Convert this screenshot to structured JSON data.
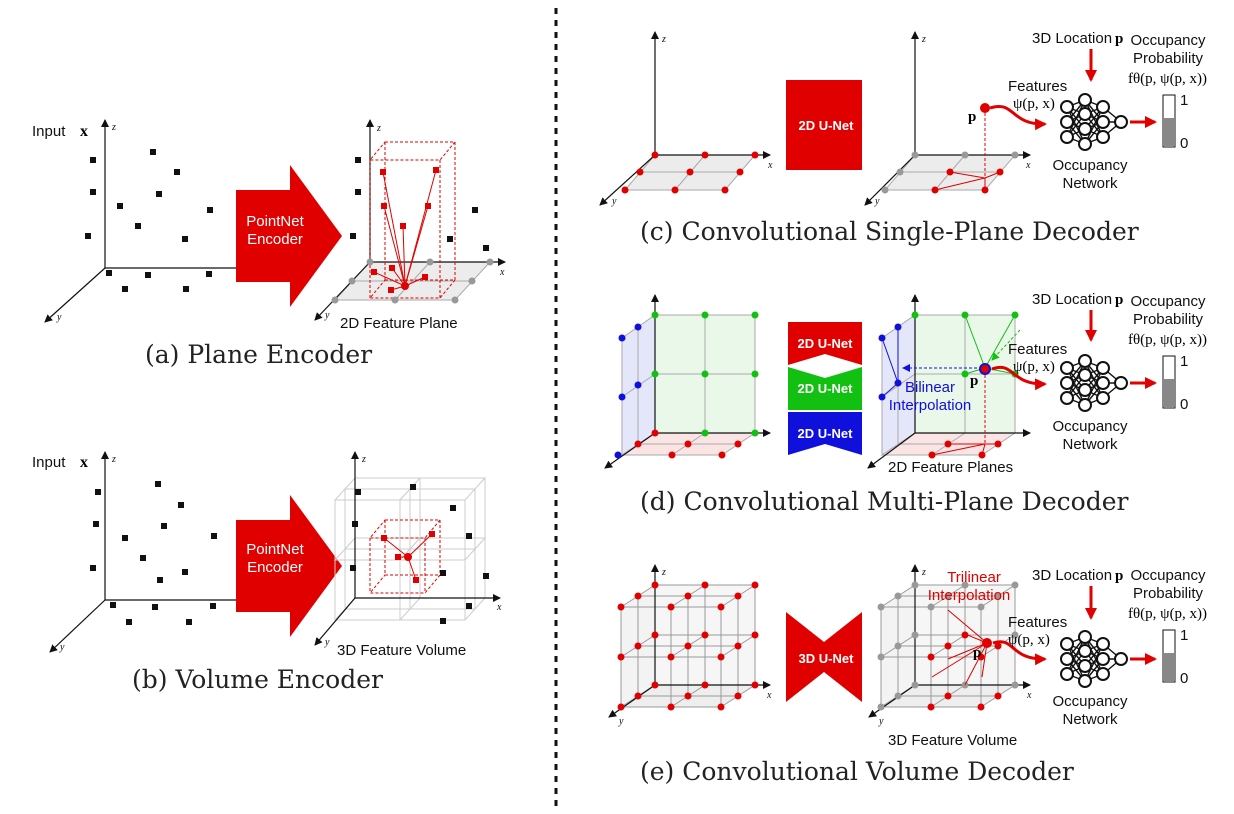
{
  "divider_color": "#111111",
  "colors": {
    "red": "#e00000",
    "green": "#11c011",
    "blue": "#1010dd",
    "gray": "#999999"
  },
  "panel_a": {
    "caption": "(a) Plane Encoder",
    "input_label": "Input",
    "input_symbol": "x",
    "encoder_line1": "PointNet",
    "encoder_line2": "Encoder",
    "feature_label": "2D Feature Plane",
    "axis_x": "x",
    "axis_y": "y",
    "axis_z": "z"
  },
  "panel_b": {
    "caption": "(b) Volume Encoder",
    "input_label": "Input",
    "input_symbol": "x",
    "encoder_line1": "PointNet",
    "encoder_line2": "Encoder",
    "feature_label": "3D Feature Volume",
    "axis_x": "x",
    "axis_y": "y",
    "axis_z": "z"
  },
  "panel_c": {
    "caption": "(c) Convolutional Single-Plane Decoder",
    "unet": "2D U-Net",
    "location_label": "3D Location",
    "location_symbol": "p",
    "point_symbol": "p",
    "features_label": "Features",
    "features_formula": "ψ(p, x)",
    "occ_line1": "Occupancy",
    "occ_line2": "Probability",
    "occ_formula": "fθ(p, ψ(p, x))",
    "bar_max": "1",
    "bar_min": "0",
    "bar_level": 0.55,
    "network_line1": "Occupancy",
    "network_line2": "Network",
    "axis_x": "x",
    "axis_y": "y",
    "axis_z": "z"
  },
  "panel_d": {
    "caption": "(d) Convolutional Multi-Plane Decoder",
    "unets": [
      "2D U-Net",
      "2D U-Net",
      "2D U-Net"
    ],
    "interp_line1": "Bilinear",
    "interp_line2": "Interpolation",
    "feature_label": "2D Feature Planes",
    "location_label": "3D Location",
    "location_symbol": "p",
    "point_symbol": "p",
    "features_label": "Features",
    "features_formula": "ψ(p, x)",
    "occ_line1": "Occupancy",
    "occ_line2": "Probability",
    "occ_formula": "fθ(p, ψ(p, x))",
    "bar_max": "1",
    "bar_min": "0",
    "bar_level": 0.55,
    "network_line1": "Occupancy",
    "network_line2": "Network",
    "axis_x": "x",
    "axis_y": "y",
    "axis_z": "z"
  },
  "panel_e": {
    "caption": "(e) Convolutional Volume Decoder",
    "unet": "3D U-Net",
    "interp_line1": "Trilinear",
    "interp_line2": "Interpolation",
    "feature_label": "3D Feature Volume",
    "location_label": "3D Location",
    "location_symbol": "p",
    "point_symbol": "p",
    "features_label": "Features",
    "features_formula": "ψ(p, x)",
    "occ_line1": "Occupancy",
    "occ_line2": "Probability",
    "occ_formula": "fθ(p, ψ(p, x))",
    "bar_max": "1",
    "bar_min": "0",
    "bar_level": 0.55,
    "network_line1": "Occupancy",
    "network_line2": "Network",
    "axis_x": "x",
    "axis_y": "y",
    "axis_z": "z"
  }
}
